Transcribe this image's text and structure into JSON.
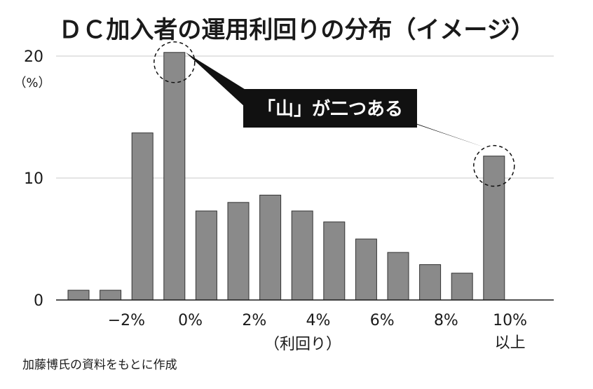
{
  "chart_data": {
    "type": "bar",
    "title": "ＤＣ加入者の運用利回りの分布（イメージ）",
    "y_unit_label": "（%）",
    "xlabel": "（利回り）",
    "ylim": [
      0,
      20
    ],
    "y_ticks": [
      "0",
      "10",
      "20"
    ],
    "x_tick_labels": [
      {
        "bar_index": 1.5,
        "text": "−2%"
      },
      {
        "bar_index": 3.5,
        "text": "0%"
      },
      {
        "bar_index": 5.5,
        "text": "2%"
      },
      {
        "bar_index": 7.5,
        "text": "4%"
      },
      {
        "bar_index": 9.5,
        "text": "6%"
      },
      {
        "bar_index": 11.5,
        "text": "8%"
      },
      {
        "bar_index": 13.5,
        "text": "10%"
      }
    ],
    "last_tick_sublabel": "以上",
    "values": [
      0.8,
      0.8,
      13.7,
      20.3,
      7.3,
      8.0,
      8.6,
      7.3,
      6.4,
      5.0,
      3.9,
      2.9,
      2.2,
      11.8
    ],
    "grid": true,
    "bar_color": "#8a8a8a",
    "annotation": {
      "text": "「山」が二つある",
      "circled_bar_indices": [
        3,
        13
      ]
    },
    "source": "加藤博氏の資料をもとに作成"
  }
}
